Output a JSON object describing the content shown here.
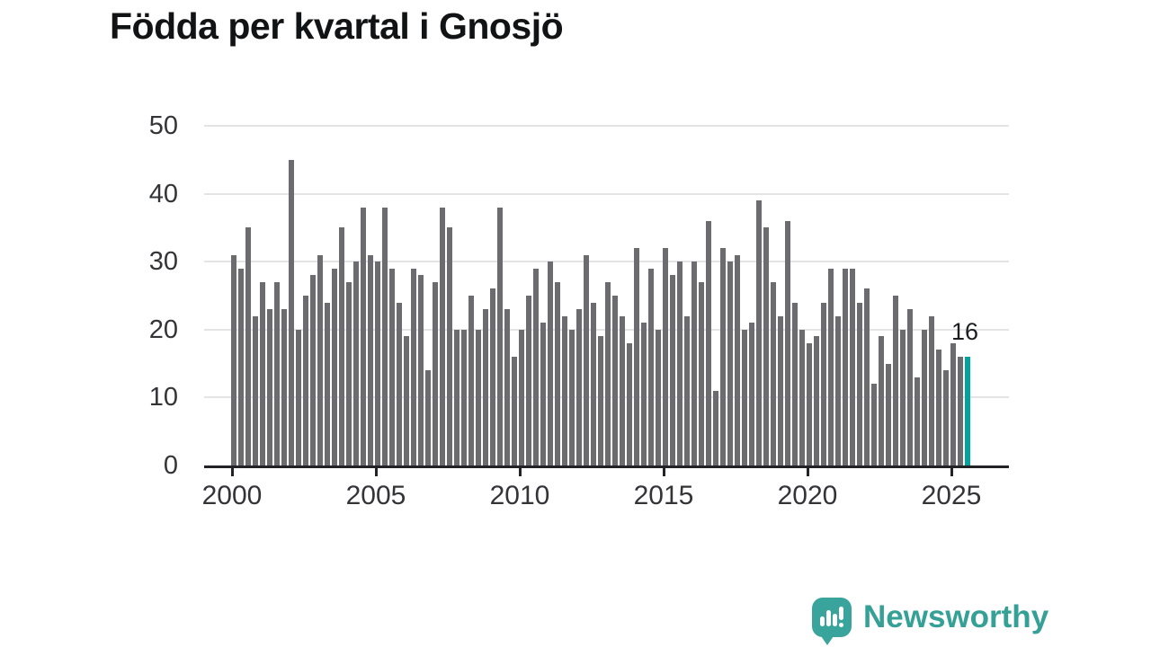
{
  "title": "Födda per kvartal i Gnosjö",
  "annotation": {
    "last_value_label": "16"
  },
  "logo": {
    "text": "Newsworthy",
    "icon": "speech-bubble-with-bar-chart-and-exclamation"
  },
  "colors": {
    "bar": "#6b6b70",
    "highlight_bar": "#00a49c",
    "logo_teal": "#34a096",
    "axis": "#222326",
    "grid": "#e4e4e6",
    "tick_text": "#333438",
    "title_text": "#111315",
    "background": "#ffffff"
  },
  "chart_data": {
    "type": "bar",
    "title": "Födda per kvartal i Gnosjö",
    "xlabel": "",
    "ylabel": "",
    "ylim": [
      0,
      50
    ],
    "y_ticks": [
      0,
      10,
      20,
      30,
      40,
      50
    ],
    "y_tick_labels": [
      "0",
      "10",
      "20",
      "30",
      "40",
      "50"
    ],
    "x_tick_years": [
      2000,
      2005,
      2010,
      2015,
      2020,
      2025
    ],
    "x_tick_labels": [
      "2000",
      "2005",
      "2010",
      "2015",
      "2020",
      "2025"
    ],
    "grid": "horizontal",
    "legend": "none",
    "frequency": "quarterly",
    "start_period": "2000 Q1",
    "end_period": "2025 Q3",
    "highlight_last_bar": true,
    "last_bar_value": 16,
    "values": [
      31,
      29,
      35,
      22,
      27,
      23,
      27,
      23,
      45,
      20,
      25,
      28,
      31,
      24,
      29,
      35,
      27,
      30,
      38,
      31,
      30,
      38,
      29,
      24,
      19,
      29,
      28,
      14,
      27,
      38,
      35,
      20,
      20,
      25,
      20,
      23,
      26,
      38,
      23,
      16,
      20,
      25,
      29,
      21,
      30,
      27,
      22,
      20,
      23,
      31,
      24,
      19,
      27,
      25,
      22,
      18,
      32,
      21,
      29,
      20,
      32,
      28,
      30,
      22,
      30,
      27,
      36,
      11,
      32,
      30,
      31,
      20,
      21,
      39,
      35,
      27,
      22,
      36,
      24,
      20,
      18,
      19,
      24,
      29,
      22,
      29,
      29,
      24,
      26,
      12,
      19,
      15,
      25,
      20,
      23,
      13,
      20,
      22,
      17,
      14,
      18,
      16,
      16
    ]
  }
}
